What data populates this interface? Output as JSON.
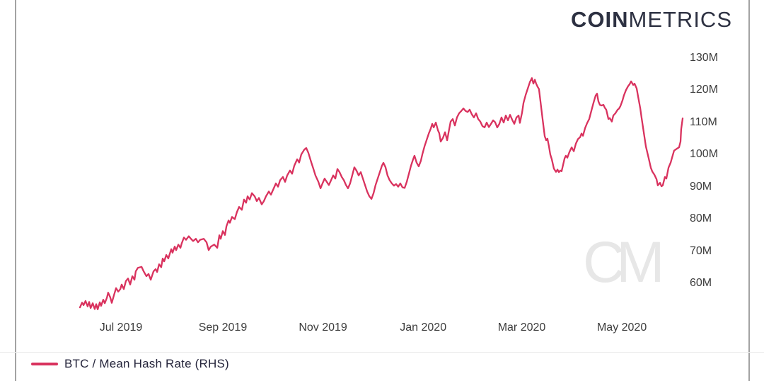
{
  "logo": {
    "bold": "COIN",
    "light": "METRICS",
    "color": "#2d3142"
  },
  "watermark": {
    "text": "CM"
  },
  "legend": {
    "label": "BTC / Mean Hash Rate (RHS)",
    "swatch_color": "#d9325e"
  },
  "chart_data": {
    "type": "line",
    "title": "",
    "series_name": "BTC / Mean Hash Rate (RHS)",
    "line_color": "#d9325e",
    "legend_position": "bottom-left",
    "grid": false,
    "y_axis": {
      "side": "right",
      "tick_values": [
        130,
        120,
        110,
        100,
        90,
        80,
        70,
        60
      ],
      "tick_labels": [
        "130M",
        "120M",
        "110M",
        "100M",
        "90M",
        "80M",
        "70M",
        "60M"
      ],
      "ylim": [
        50,
        133
      ]
    },
    "x_axis": {
      "tick_days": [
        25,
        87,
        148,
        209,
        269,
        330
      ],
      "tick_labels": [
        "Jul 2019",
        "Sep 2019",
        "Nov 2019",
        "Jan 2020",
        "Mar 2020",
        "May 2020"
      ],
      "domain_days": [
        0,
        367
      ]
    },
    "points": [
      [
        0,
        52.5
      ],
      [
        1.3,
        54
      ],
      [
        2.2,
        53.2
      ],
      [
        3.4,
        54.5
      ],
      [
        4.7,
        52.8
      ],
      [
        5.6,
        54.2
      ],
      [
        6.5,
        52.3
      ],
      [
        7.8,
        53.8
      ],
      [
        9,
        52
      ],
      [
        9.9,
        53.5
      ],
      [
        10.8,
        51.9
      ],
      [
        12.1,
        54.1
      ],
      [
        12.9,
        53
      ],
      [
        14.2,
        54.9
      ],
      [
        15.1,
        53.8
      ],
      [
        16.4,
        55.5
      ],
      [
        17.2,
        57.1
      ],
      [
        18.5,
        55.6
      ],
      [
        19.4,
        53.9
      ],
      [
        20.7,
        56.3
      ],
      [
        22,
        58.5
      ],
      [
        23.3,
        57.4
      ],
      [
        24.6,
        58.2
      ],
      [
        25.4,
        59.6
      ],
      [
        26.7,
        58.2
      ],
      [
        28,
        60.7
      ],
      [
        29.3,
        61.5
      ],
      [
        30.6,
        59.6
      ],
      [
        31.9,
        62.2
      ],
      [
        33.2,
        61.1
      ],
      [
        34,
        63.7
      ],
      [
        35.3,
        64.8
      ],
      [
        37.5,
        65.1
      ],
      [
        38.8,
        63.7
      ],
      [
        40.5,
        62.2
      ],
      [
        41.8,
        62.9
      ],
      [
        43.1,
        61.1
      ],
      [
        44.8,
        63.7
      ],
      [
        46.1,
        64.4
      ],
      [
        47,
        63.5
      ],
      [
        48.2,
        65.9
      ],
      [
        49.5,
        65
      ],
      [
        50.4,
        67.7
      ],
      [
        51.3,
        66.8
      ],
      [
        52.6,
        68.8
      ],
      [
        53.8,
        67.7
      ],
      [
        55.6,
        70.6
      ],
      [
        56.4,
        69.5
      ],
      [
        57.7,
        71.4
      ],
      [
        58.6,
        70.3
      ],
      [
        59.9,
        72
      ],
      [
        61.2,
        71
      ],
      [
        62,
        72.4
      ],
      [
        63.3,
        74.2
      ],
      [
        64.6,
        73.5
      ],
      [
        66.3,
        74.6
      ],
      [
        67.6,
        73.8
      ],
      [
        68.9,
        73.1
      ],
      [
        70.6,
        73.8
      ],
      [
        71.9,
        72.7
      ],
      [
        73.2,
        73.5
      ],
      [
        75.4,
        73.8
      ],
      [
        77.1,
        72.7
      ],
      [
        78.4,
        70.3
      ],
      [
        79.7,
        71.4
      ],
      [
        81.8,
        72
      ],
      [
        83.6,
        71
      ],
      [
        84.9,
        74.9
      ],
      [
        85.7,
        73.8
      ],
      [
        87,
        76.2
      ],
      [
        88.3,
        75
      ],
      [
        89.2,
        77.7
      ],
      [
        90.5,
        79.5
      ],
      [
        91.3,
        78.8
      ],
      [
        92.6,
        80.6
      ],
      [
        94.3,
        79.9
      ],
      [
        95.6,
        82.1
      ],
      [
        96.9,
        83.7
      ],
      [
        98.6,
        82.8
      ],
      [
        99.9,
        86
      ],
      [
        101.2,
        85
      ],
      [
        102.1,
        87
      ],
      [
        103.4,
        86
      ],
      [
        104.7,
        88
      ],
      [
        106.4,
        87
      ],
      [
        107.7,
        85.5
      ],
      [
        109,
        86.5
      ],
      [
        110.7,
        84.5
      ],
      [
        112,
        85.5
      ],
      [
        113.3,
        87
      ],
      [
        115,
        88.5
      ],
      [
        116.3,
        87.5
      ],
      [
        117.6,
        89
      ],
      [
        119.3,
        91
      ],
      [
        120.6,
        90
      ],
      [
        121.9,
        92
      ],
      [
        123.6,
        93
      ],
      [
        124.9,
        91.5
      ],
      [
        126.2,
        93.5
      ],
      [
        127.9,
        95
      ],
      [
        129.2,
        94
      ],
      [
        130.5,
        96.5
      ],
      [
        132.3,
        98.5
      ],
      [
        133.5,
        97.5
      ],
      [
        134.8,
        100
      ],
      [
        136.6,
        101.5
      ],
      [
        137.8,
        102
      ],
      [
        139.1,
        100.5
      ],
      [
        140.9,
        97.5
      ],
      [
        142.2,
        95.5
      ],
      [
        143.4,
        93.5
      ],
      [
        145.2,
        91.5
      ],
      [
        146.5,
        89.5
      ],
      [
        147.7,
        91
      ],
      [
        149,
        92.5
      ],
      [
        150.3,
        91.5
      ],
      [
        151.6,
        90.5
      ],
      [
        152.9,
        92
      ],
      [
        154.2,
        93.5
      ],
      [
        155.5,
        92.5
      ],
      [
        156.8,
        95.5
      ],
      [
        158.1,
        94.5
      ],
      [
        159.4,
        93
      ],
      [
        160.7,
        92
      ],
      [
        162,
        90.5
      ],
      [
        163.2,
        89.5
      ],
      [
        164.5,
        91
      ],
      [
        165.8,
        93.5
      ],
      [
        167.1,
        96
      ],
      [
        168.4,
        95
      ],
      [
        169.7,
        93.5
      ],
      [
        171,
        94.5
      ],
      [
        172.3,
        92.5
      ],
      [
        173.6,
        90.5
      ],
      [
        174.9,
        88.5
      ],
      [
        176.2,
        87
      ],
      [
        177.5,
        86.2
      ],
      [
        178.8,
        88
      ],
      [
        180,
        90.5
      ],
      [
        181.3,
        92.5
      ],
      [
        182.6,
        94.5
      ],
      [
        183.9,
        96.5
      ],
      [
        184.8,
        97.4
      ],
      [
        186.1,
        96
      ],
      [
        187.3,
        93.5
      ],
      [
        188.6,
        92
      ],
      [
        189.9,
        91
      ],
      [
        191.2,
        90.3
      ],
      [
        192.5,
        90.8
      ],
      [
        193.8,
        90
      ],
      [
        195.1,
        91
      ],
      [
        196.4,
        89.8
      ],
      [
        197.7,
        89.6
      ],
      [
        199,
        91.5
      ],
      [
        200.3,
        94
      ],
      [
        201.6,
        96.5
      ],
      [
        202.9,
        98.5
      ],
      [
        203.7,
        99.6
      ],
      [
        205,
        97.5
      ],
      [
        206.3,
        96.3
      ],
      [
        207.6,
        98
      ],
      [
        208.5,
        100
      ],
      [
        209.8,
        102.5
      ],
      [
        211.1,
        104.5
      ],
      [
        212.4,
        106.5
      ],
      [
        213.6,
        108
      ],
      [
        214.5,
        109.5
      ],
      [
        215.4,
        108.4
      ],
      [
        216.7,
        109.9
      ],
      [
        218,
        107.5
      ],
      [
        218.8,
        106.6
      ],
      [
        219.7,
        104
      ],
      [
        221,
        105.1
      ],
      [
        222.3,
        106.9
      ],
      [
        223.6,
        104.4
      ],
      [
        224.9,
        108
      ],
      [
        225.7,
        110.2
      ],
      [
        227,
        111
      ],
      [
        228.3,
        109
      ],
      [
        229.6,
        111.5
      ],
      [
        230.9,
        112.8
      ],
      [
        232.2,
        113.5
      ],
      [
        233.5,
        114.3
      ],
      [
        234.8,
        113.5
      ],
      [
        236.1,
        113.2
      ],
      [
        237.3,
        113.9
      ],
      [
        238.6,
        112.5
      ],
      [
        239.9,
        111.5
      ],
      [
        241.2,
        112.8
      ],
      [
        242.5,
        111
      ],
      [
        243.8,
        110.2
      ],
      [
        245.1,
        108.8
      ],
      [
        246.4,
        108.4
      ],
      [
        247.7,
        109.9
      ],
      [
        249,
        108.5
      ],
      [
        250.3,
        109.5
      ],
      [
        251.6,
        110.6
      ],
      [
        252.8,
        110
      ],
      [
        254.1,
        108.4
      ],
      [
        255.4,
        109.5
      ],
      [
        256.7,
        111.5
      ],
      [
        258,
        109.9
      ],
      [
        259.3,
        112.1
      ],
      [
        260.6,
        110.6
      ],
      [
        261.9,
        112.3
      ],
      [
        263.2,
        110.8
      ],
      [
        264.5,
        109.5
      ],
      [
        265.8,
        111.5
      ],
      [
        267.1,
        112.1
      ],
      [
        267.9,
        109.8
      ],
      [
        269.2,
        113
      ],
      [
        270.1,
        116
      ],
      [
        271.4,
        118.5
      ],
      [
        272.7,
        120.5
      ],
      [
        274,
        122.5
      ],
      [
        275.2,
        123.7
      ],
      [
        276.1,
        122
      ],
      [
        277,
        123.2
      ],
      [
        277.8,
        122
      ],
      [
        278.7,
        121
      ],
      [
        279.5,
        120.3
      ],
      [
        280.4,
        116.5
      ],
      [
        281.7,
        111
      ],
      [
        283,
        105.7
      ],
      [
        283.9,
        104.4
      ],
      [
        284.7,
        104.9
      ],
      [
        285.6,
        102.5
      ],
      [
        286.4,
        100
      ],
      [
        287.3,
        98.5
      ],
      [
        288.6,
        95.6
      ],
      [
        289.9,
        94.6
      ],
      [
        290.8,
        95.3
      ],
      [
        291.6,
        94.5
      ],
      [
        292.5,
        95
      ],
      [
        293.3,
        94.8
      ],
      [
        294.2,
        96.8
      ],
      [
        295.1,
        98.8
      ],
      [
        295.9,
        99.6
      ],
      [
        296.8,
        99
      ],
      [
        298.1,
        100.8
      ],
      [
        299.4,
        102.2
      ],
      [
        300.7,
        101
      ],
      [
        302,
        103.4
      ],
      [
        303.3,
        104.8
      ],
      [
        304.6,
        105.4
      ],
      [
        305.4,
        106.5
      ],
      [
        306.3,
        105.8
      ],
      [
        307.6,
        108.2
      ],
      [
        308.9,
        109.8
      ],
      [
        310.1,
        111
      ],
      [
        311.4,
        113.5
      ],
      [
        312.7,
        116
      ],
      [
        314,
        118.3
      ],
      [
        314.9,
        118.9
      ],
      [
        315.7,
        116.5
      ],
      [
        316.6,
        115.4
      ],
      [
        317.5,
        115.2
      ],
      [
        318.8,
        115.4
      ],
      [
        319.6,
        114.5
      ],
      [
        320.5,
        113.9
      ],
      [
        321.8,
        111
      ],
      [
        322.6,
        111.3
      ],
      [
        323.9,
        110.2
      ],
      [
        324.8,
        112.1
      ],
      [
        326.1,
        112.8
      ],
      [
        327.4,
        113.9
      ],
      [
        328.2,
        114.2
      ],
      [
        329.1,
        115
      ],
      [
        330.4,
        116.8
      ],
      [
        331.2,
        118.3
      ],
      [
        332.5,
        120
      ],
      [
        333.8,
        121.2
      ],
      [
        334.7,
        121.8
      ],
      [
        335.6,
        122.7
      ],
      [
        336.9,
        121.6
      ],
      [
        337.7,
        122
      ],
      [
        339,
        120.5
      ],
      [
        339.9,
        117.9
      ],
      [
        341.2,
        114.3
      ],
      [
        342,
        111.3
      ],
      [
        343.3,
        106.9
      ],
      [
        344.6,
        102.5
      ],
      [
        346.3,
        98.9
      ],
      [
        347.6,
        95.9
      ],
      [
        348.5,
        94.7
      ],
      [
        349.8,
        93.7
      ],
      [
        351.1,
        92.3
      ],
      [
        351.9,
        90.4
      ],
      [
        353.2,
        91.2
      ],
      [
        354.1,
        90.1
      ],
      [
        354.9,
        90.4
      ],
      [
        356.2,
        93
      ],
      [
        357.1,
        92.5
      ],
      [
        358.4,
        95.9
      ],
      [
        359.7,
        97.5
      ],
      [
        360.5,
        98.9
      ],
      [
        361.8,
        101.2
      ],
      [
        363.5,
        101.8
      ],
      [
        364.8,
        102.2
      ],
      [
        365.7,
        104
      ],
      [
        366.1,
        107.8
      ],
      [
        367,
        111.2
      ]
    ]
  }
}
